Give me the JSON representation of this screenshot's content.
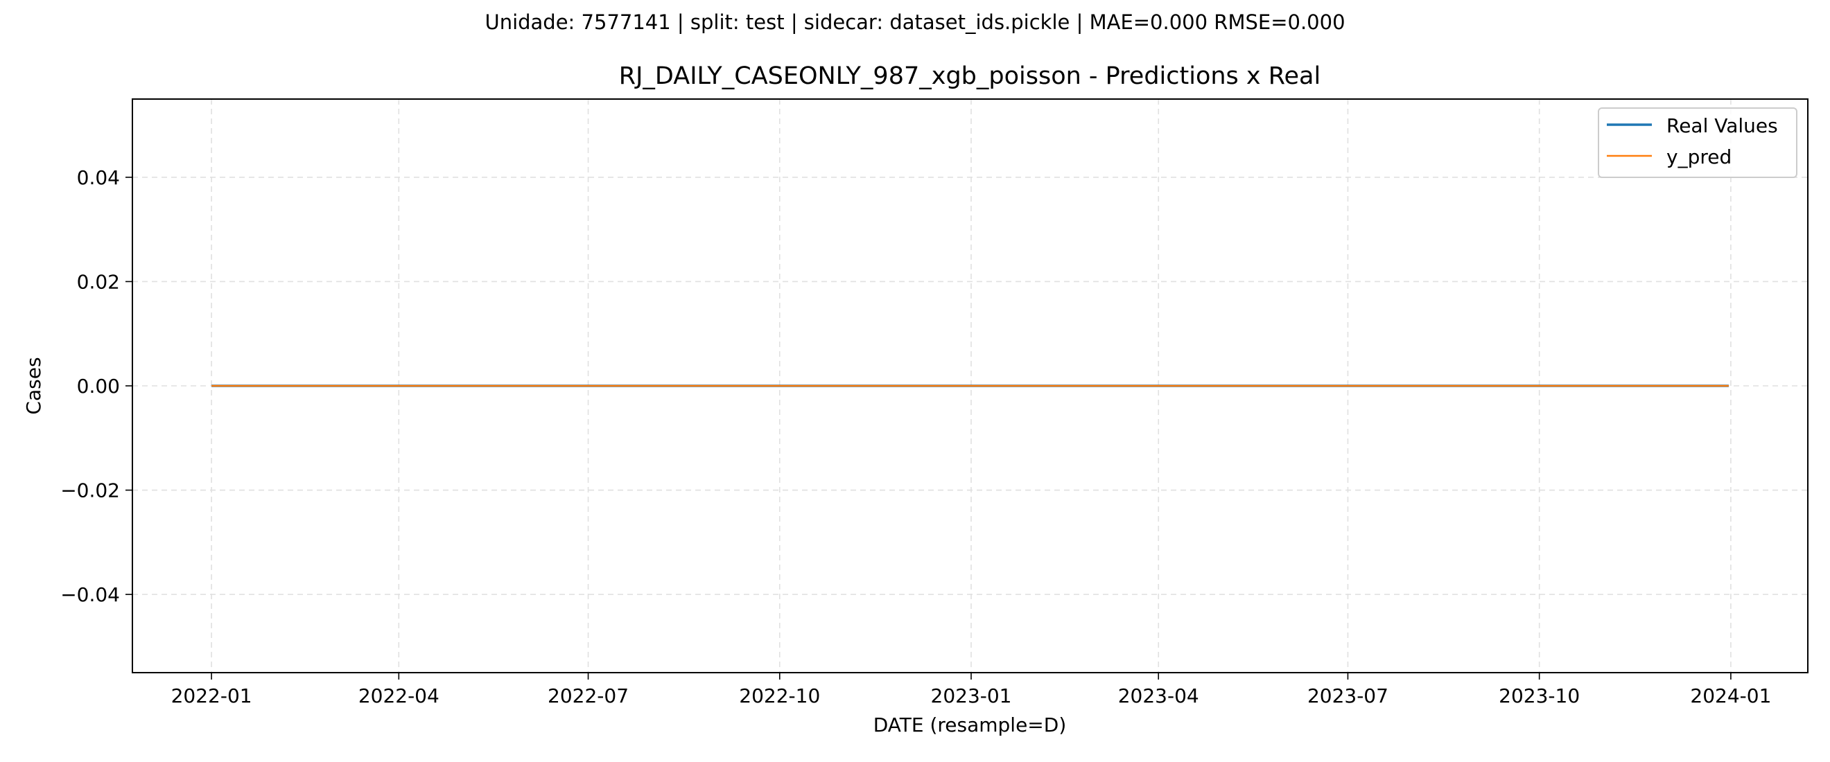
{
  "suptitle": "Unidade: 7577141 | split: test | sidecar: dataset_ids.pickle | MAE=0.000  RMSE=0.000",
  "colors": {
    "real": "#1f77b4",
    "pred": "#ff7f0e",
    "grid": "#e0e0e0",
    "axes": "#000000"
  },
  "chart_data": {
    "type": "line",
    "title": "RJ_DAILY_CASEONLY_987_xgb_poisson - Predictions x Real",
    "xlabel": "DATE (resample=D)",
    "ylabel": "Cases",
    "x_type": "date",
    "xlim": [
      "2021-11-24",
      "2024-02-07"
    ],
    "ylim": [
      -0.055,
      0.055
    ],
    "x_ticks": [
      "2022-01-01",
      "2022-04-01",
      "2022-07-01",
      "2022-10-01",
      "2023-01-01",
      "2023-04-01",
      "2023-07-01",
      "2023-10-01",
      "2024-01-01"
    ],
    "x_tick_labels": [
      "2022-01",
      "2022-04",
      "2022-07",
      "2022-10",
      "2023-01",
      "2023-04",
      "2023-07",
      "2023-10",
      "2024-01"
    ],
    "y_ticks": [
      0.04,
      0.02,
      0.0,
      -0.02,
      -0.04
    ],
    "y_tick_labels": [
      "0.04",
      "0.02",
      "0.00",
      "−0.02",
      "−0.04"
    ],
    "grid": true,
    "legend_position": "top-right",
    "series": [
      {
        "name": "Real Values",
        "color": "#1f77b4",
        "x": [
          "2022-01-01",
          "2023-12-31"
        ],
        "y": [
          0,
          0
        ]
      },
      {
        "name": "y_pred",
        "color": "#ff7f0e",
        "x": [
          "2022-01-01",
          "2023-12-31"
        ],
        "y": [
          0,
          0
        ]
      }
    ]
  }
}
